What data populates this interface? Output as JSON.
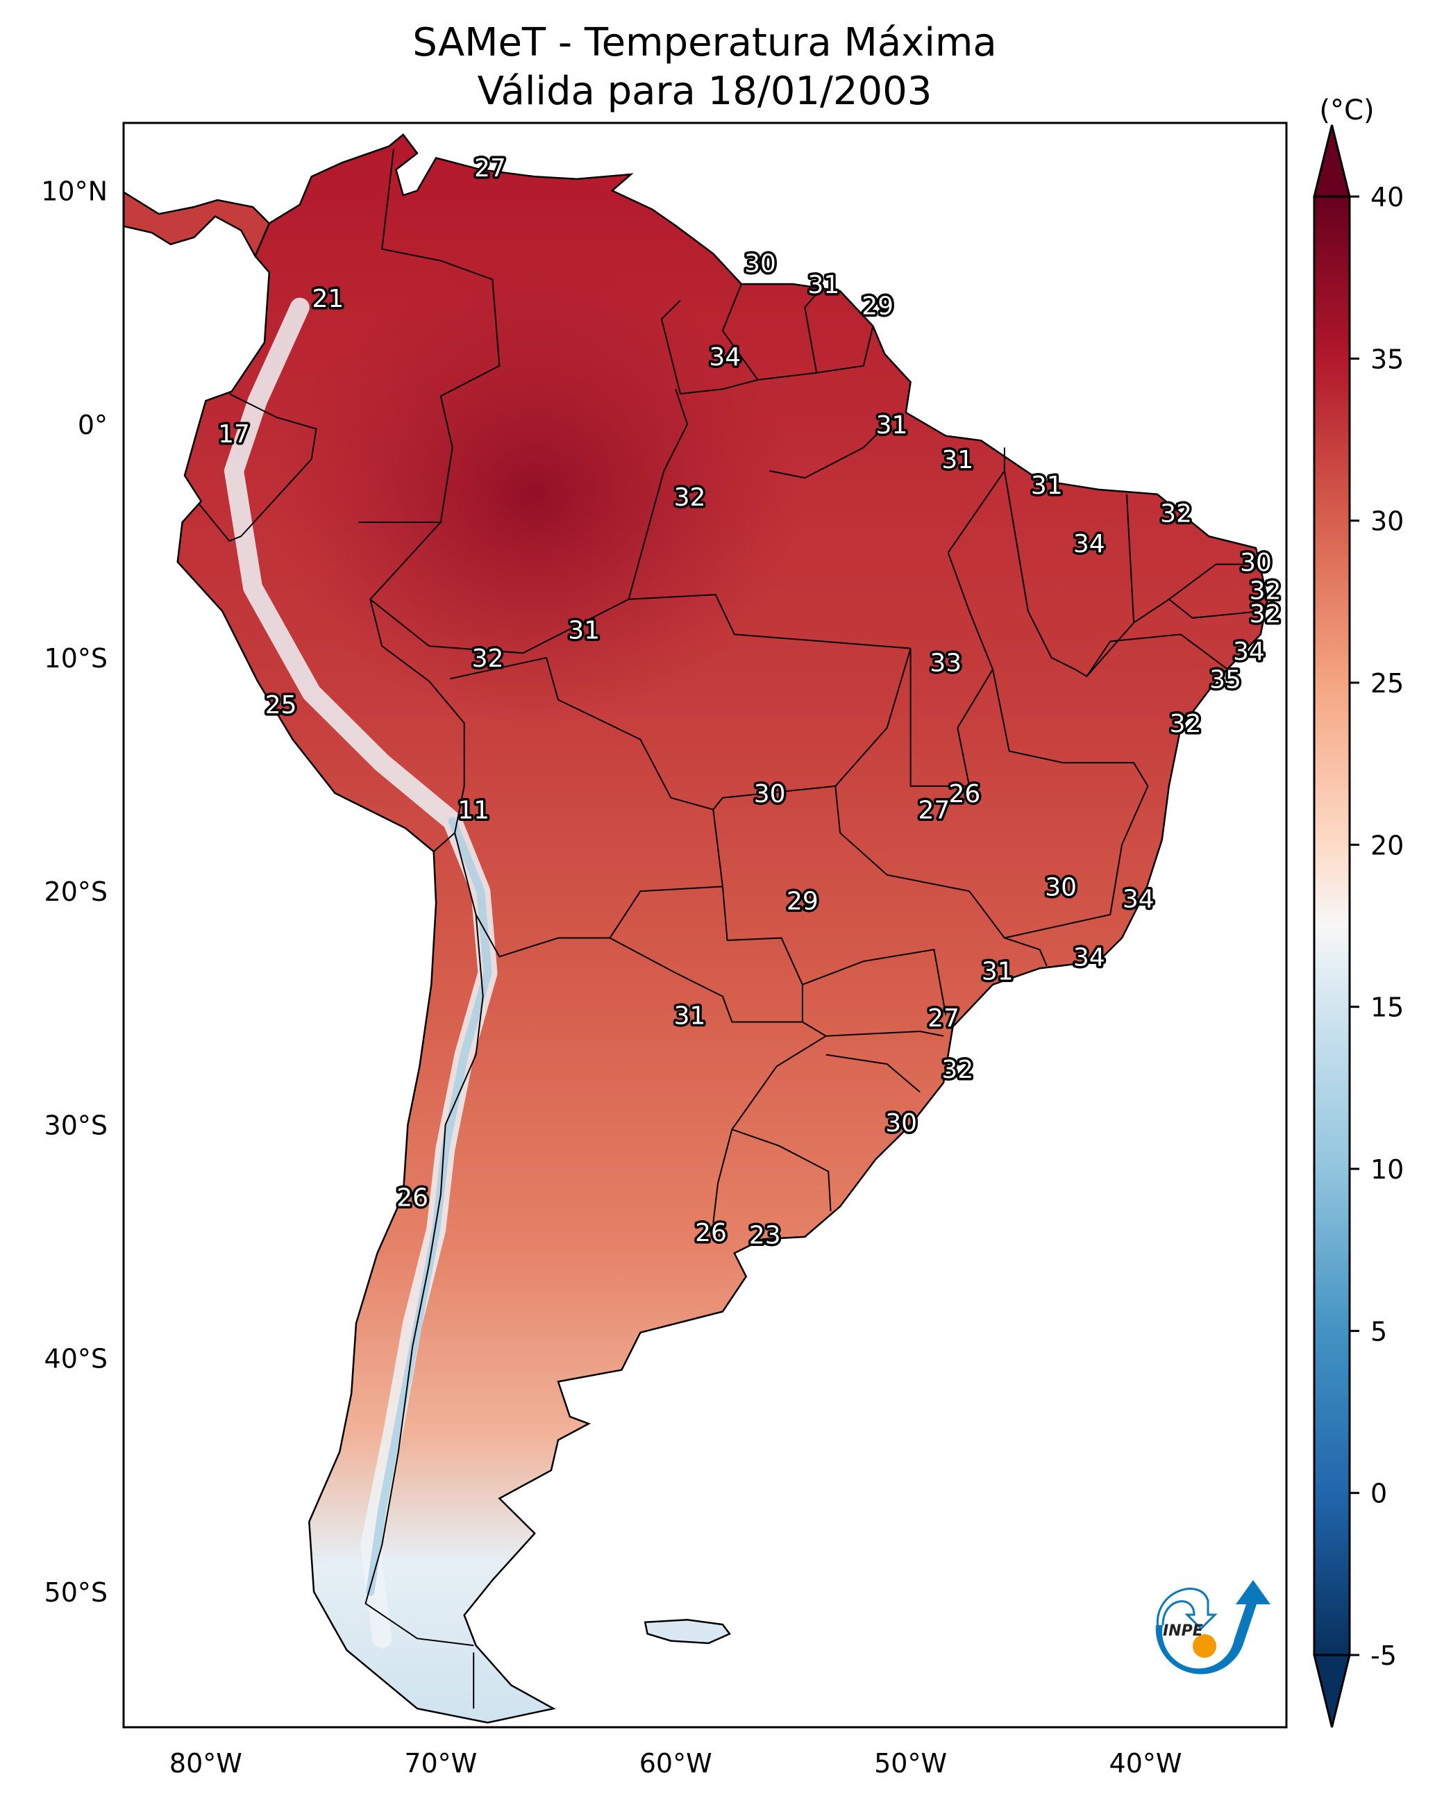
{
  "figure": {
    "title_line1": "SAMeT - Temperatura Máxima",
    "title_line2": "Válida para 18/01/2003"
  },
  "chart_data": {
    "type": "heatmap",
    "title": "SAMeT - Temperatura Máxima",
    "subtitle": "Válida para 18/01/2003",
    "variable": "Maximum temperature",
    "units": "°C",
    "extent": {
      "lon_min": -83.5,
      "lon_max": -34.0,
      "lat_min": -55.8,
      "lat_max": 12.9
    },
    "x_ticks": [
      {
        "value": -80,
        "label": "80°W"
      },
      {
        "value": -70,
        "label": "70°W"
      },
      {
        "value": -60,
        "label": "60°W"
      },
      {
        "value": -50,
        "label": "50°W"
      },
      {
        "value": -40,
        "label": "40°W"
      }
    ],
    "y_ticks": [
      {
        "value": 10,
        "label": "10°N"
      },
      {
        "value": 0,
        "label": "0°"
      },
      {
        "value": -10,
        "label": "10°S"
      },
      {
        "value": -20,
        "label": "20°S"
      },
      {
        "value": -30,
        "label": "30°S"
      },
      {
        "value": -40,
        "label": "40°S"
      },
      {
        "value": -50,
        "label": "50°S"
      }
    ],
    "colorbar": {
      "label": "(°C)",
      "colormap": "RdBu_r",
      "range": [
        -5,
        40
      ],
      "extend": "both",
      "ticks": [
        40,
        35,
        30,
        25,
        20,
        15,
        10,
        5,
        0,
        -5
      ],
      "stops": [
        {
          "value": -5,
          "color": "#08305e"
        },
        {
          "value": 0,
          "color": "#2166ac"
        },
        {
          "value": 5,
          "color": "#4393c3"
        },
        {
          "value": 10,
          "color": "#92c5de"
        },
        {
          "value": 15,
          "color": "#d1e5f0"
        },
        {
          "value": 17.5,
          "color": "#f7f7f7"
        },
        {
          "value": 20,
          "color": "#fddbc7"
        },
        {
          "value": 25,
          "color": "#f4a582"
        },
        {
          "value": 30,
          "color": "#d6604d"
        },
        {
          "value": 35,
          "color": "#b2182b"
        },
        {
          "value": 40,
          "color": "#67001f"
        }
      ]
    },
    "station_labels": [
      {
        "lon": -67.9,
        "lat": 11.0,
        "value": 27
      },
      {
        "lon": -74.8,
        "lat": 5.4,
        "value": 21
      },
      {
        "lon": -56.4,
        "lat": 6.9,
        "value": 30
      },
      {
        "lon": -53.7,
        "lat": 6.0,
        "value": 31
      },
      {
        "lon": -51.4,
        "lat": 5.1,
        "value": 29
      },
      {
        "lon": -57.9,
        "lat": 2.9,
        "value": 34
      },
      {
        "lon": -78.8,
        "lat": -0.4,
        "value": 17
      },
      {
        "lon": -50.8,
        "lat": -0.0,
        "value": 31
      },
      {
        "lon": -59.4,
        "lat": -3.1,
        "value": 32
      },
      {
        "lon": -48.0,
        "lat": -1.5,
        "value": 31
      },
      {
        "lon": -44.2,
        "lat": -2.6,
        "value": 31
      },
      {
        "lon": -38.7,
        "lat": -3.8,
        "value": 32
      },
      {
        "lon": -42.4,
        "lat": -5.1,
        "value": 34
      },
      {
        "lon": -35.3,
        "lat": -5.9,
        "value": 30
      },
      {
        "lon": -34.9,
        "lat": -7.1,
        "value": 32
      },
      {
        "lon": -34.9,
        "lat": -8.1,
        "value": 32
      },
      {
        "lon": -63.9,
        "lat": -8.8,
        "value": 31
      },
      {
        "lon": -68.0,
        "lat": -10.0,
        "value": 32
      },
      {
        "lon": -48.5,
        "lat": -10.2,
        "value": 33
      },
      {
        "lon": -35.6,
        "lat": -9.7,
        "value": 34
      },
      {
        "lon": -36.6,
        "lat": -10.9,
        "value": 35
      },
      {
        "lon": -76.8,
        "lat": -12.0,
        "value": 25
      },
      {
        "lon": -38.3,
        "lat": -12.8,
        "value": 32
      },
      {
        "lon": -68.6,
        "lat": -16.5,
        "value": 11
      },
      {
        "lon": -56.0,
        "lat": -15.8,
        "value": 30
      },
      {
        "lon": -47.7,
        "lat": -15.8,
        "value": 26
      },
      {
        "lon": -49.0,
        "lat": -16.5,
        "value": 27
      },
      {
        "lon": -43.6,
        "lat": -19.8,
        "value": 30
      },
      {
        "lon": -54.6,
        "lat": -20.4,
        "value": 29
      },
      {
        "lon": -40.3,
        "lat": -20.3,
        "value": 34
      },
      {
        "lon": -42.4,
        "lat": -22.8,
        "value": 34
      },
      {
        "lon": -46.3,
        "lat": -23.4,
        "value": 31
      },
      {
        "lon": -59.4,
        "lat": -25.3,
        "value": 31
      },
      {
        "lon": -48.6,
        "lat": -25.4,
        "value": 27
      },
      {
        "lon": -48.0,
        "lat": -27.6,
        "value": 32
      },
      {
        "lon": -50.4,
        "lat": -29.9,
        "value": 30
      },
      {
        "lon": -71.2,
        "lat": -33.1,
        "value": 26
      },
      {
        "lon": -58.5,
        "lat": -34.6,
        "value": 26
      },
      {
        "lon": -56.2,
        "lat": -34.7,
        "value": 23
      }
    ]
  },
  "logo": {
    "text": "INPE",
    "colors": {
      "blue": "#0a78bd",
      "orange": "#f39a00"
    }
  }
}
